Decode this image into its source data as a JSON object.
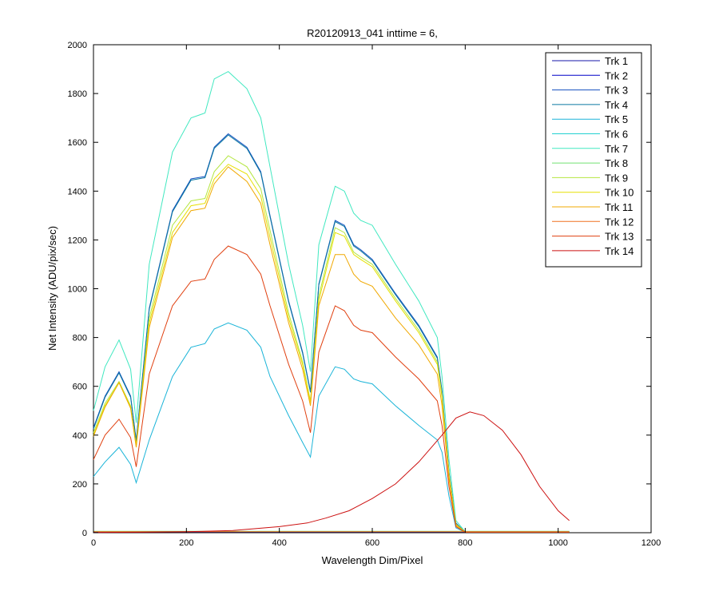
{
  "chart_data": {
    "type": "line",
    "title": "R20120913_041 inttime = 6,",
    "xlabel": "Wavelength Dim/Pixel",
    "ylabel": "Net Intensity (ADU/pix/sec)",
    "xlim": [
      0,
      1200
    ],
    "ylim": [
      0,
      2000
    ],
    "xticks": [
      "0",
      "200",
      "400",
      "600",
      "800",
      "1000",
      "1200"
    ],
    "yticks": [
      "0",
      "200",
      "400",
      "600",
      "800",
      "1000",
      "1200",
      "1400",
      "1600",
      "1800",
      "2000"
    ],
    "grid": false,
    "legend_position": "top-right",
    "series": [
      {
        "name": "Trk 1",
        "color": "#1515a8",
        "x": [
          0,
          1024
        ],
        "y": [
          3,
          3
        ]
      },
      {
        "name": "Trk 2",
        "color": "#0000c8",
        "x": [
          0,
          1024
        ],
        "y": [
          4,
          4
        ]
      },
      {
        "name": "Trk 3",
        "color": "#1450c0",
        "x": [
          0,
          25,
          55,
          80,
          92,
          120,
          170,
          210,
          240,
          260,
          290,
          330,
          360,
          380,
          420,
          450,
          467,
          485,
          520,
          540,
          560,
          575,
          600,
          650,
          700,
          740,
          750,
          765,
          780,
          800,
          1024
        ],
        "y": [
          430,
          560,
          660,
          560,
          380,
          920,
          1320,
          1450,
          1460,
          1580,
          1635,
          1580,
          1480,
          1300,
          950,
          740,
          580,
          1020,
          1280,
          1260,
          1180,
          1160,
          1120,
          980,
          850,
          720,
          580,
          250,
          40,
          3,
          3
        ]
      },
      {
        "name": "Trk 4",
        "color": "#0a78a0",
        "x": [
          0,
          25,
          55,
          80,
          92,
          120,
          170,
          210,
          240,
          260,
          290,
          330,
          360,
          380,
          420,
          450,
          467,
          485,
          520,
          540,
          560,
          575,
          600,
          650,
          700,
          740,
          750,
          765,
          780,
          800,
          1024
        ],
        "y": [
          425,
          555,
          655,
          555,
          375,
          915,
          1315,
          1445,
          1455,
          1575,
          1630,
          1575,
          1475,
          1295,
          945,
          735,
          575,
          1015,
          1275,
          1255,
          1175,
          1155,
          1115,
          975,
          845,
          715,
          575,
          245,
          38,
          3,
          3
        ]
      },
      {
        "name": "Trk 5",
        "color": "#1ab4d8",
        "x": [
          0,
          25,
          55,
          80,
          92,
          120,
          170,
          210,
          240,
          260,
          290,
          330,
          360,
          380,
          420,
          450,
          467,
          485,
          520,
          540,
          560,
          575,
          600,
          650,
          700,
          740,
          750,
          765,
          780,
          800,
          1024
        ],
        "y": [
          230,
          290,
          350,
          280,
          205,
          380,
          640,
          760,
          775,
          835,
          860,
          830,
          760,
          640,
          480,
          370,
          310,
          560,
          680,
          670,
          630,
          620,
          610,
          520,
          440,
          380,
          330,
          150,
          20,
          2,
          2
        ]
      },
      {
        "name": "Trk 6",
        "color": "#22d0d0",
        "x": [
          0,
          1024
        ],
        "y": [
          5,
          5
        ]
      },
      {
        "name": "Trk 7",
        "color": "#40e8c0",
        "x": [
          0,
          25,
          55,
          80,
          92,
          120,
          170,
          210,
          240,
          260,
          290,
          330,
          360,
          380,
          420,
          450,
          467,
          485,
          520,
          540,
          560,
          575,
          600,
          650,
          700,
          740,
          750,
          765,
          780,
          800,
          1024
        ],
        "y": [
          500,
          680,
          790,
          670,
          450,
          1100,
          1560,
          1700,
          1720,
          1860,
          1890,
          1820,
          1700,
          1500,
          1100,
          850,
          660,
          1180,
          1420,
          1400,
          1310,
          1280,
          1260,
          1100,
          950,
          800,
          640,
          300,
          50,
          4,
          4
        ]
      },
      {
        "name": "Trk 8",
        "color": "#70e070",
        "x": [
          0,
          1024
        ],
        "y": [
          6,
          6
        ]
      },
      {
        "name": "Trk 9",
        "color": "#b4e640",
        "x": [
          0,
          25,
          55,
          80,
          92,
          120,
          170,
          210,
          240,
          260,
          290,
          330,
          360,
          380,
          420,
          450,
          467,
          485,
          520,
          540,
          560,
          575,
          600,
          650,
          700,
          740,
          750,
          765,
          780,
          800,
          1024
        ],
        "y": [
          410,
          530,
          620,
          520,
          360,
          880,
          1260,
          1360,
          1370,
          1480,
          1545,
          1500,
          1410,
          1240,
          900,
          700,
          540,
          970,
          1250,
          1230,
          1150,
          1130,
          1100,
          960,
          830,
          700,
          560,
          240,
          35,
          3,
          3
        ]
      },
      {
        "name": "Trk 10",
        "color": "#e6e000",
        "x": [
          0,
          25,
          55,
          80,
          92,
          120,
          170,
          210,
          240,
          260,
          290,
          330,
          360,
          380,
          420,
          450,
          467,
          485,
          520,
          540,
          560,
          575,
          600,
          650,
          700,
          740,
          750,
          765,
          780,
          800,
          1024
        ],
        "y": [
          400,
          520,
          615,
          515,
          355,
          860,
          1230,
          1340,
          1350,
          1450,
          1510,
          1470,
          1380,
          1210,
          880,
          690,
          535,
          950,
          1230,
          1215,
          1140,
          1120,
          1090,
          950,
          820,
          690,
          555,
          235,
          33,
          3,
          3
        ]
      },
      {
        "name": "Trk 11",
        "color": "#f0a800",
        "x": [
          0,
          25,
          55,
          80,
          92,
          120,
          170,
          210,
          240,
          260,
          290,
          330,
          360,
          380,
          420,
          450,
          467,
          485,
          520,
          540,
          560,
          575,
          600,
          650,
          700,
          740,
          750,
          765,
          780,
          800,
          1024
        ],
        "y": [
          395,
          515,
          615,
          510,
          350,
          840,
          1210,
          1320,
          1330,
          1430,
          1500,
          1440,
          1350,
          1180,
          860,
          670,
          520,
          930,
          1140,
          1140,
          1060,
          1030,
          1010,
          880,
          770,
          650,
          520,
          220,
          30,
          3,
          3
        ]
      },
      {
        "name": "Trk 12",
        "color": "#f07020",
        "x": [
          0,
          1024
        ],
        "y": [
          4,
          4
        ]
      },
      {
        "name": "Trk 13",
        "color": "#e04010",
        "x": [
          0,
          25,
          55,
          80,
          92,
          120,
          170,
          210,
          240,
          260,
          290,
          330,
          360,
          380,
          420,
          450,
          467,
          485,
          520,
          540,
          560,
          575,
          600,
          650,
          700,
          740,
          750,
          765,
          780,
          800,
          1024
        ],
        "y": [
          300,
          400,
          465,
          390,
          270,
          650,
          930,
          1030,
          1040,
          1120,
          1175,
          1140,
          1060,
          930,
          690,
          540,
          410,
          740,
          930,
          910,
          850,
          830,
          820,
          720,
          630,
          540,
          440,
          190,
          25,
          2,
          2
        ]
      },
      {
        "name": "Trk 14",
        "color": "#cc1010",
        "x": [
          0,
          100,
          200,
          300,
          400,
          460,
          500,
          550,
          600,
          650,
          700,
          750,
          780,
          810,
          840,
          880,
          920,
          960,
          1000,
          1024
        ],
        "y": [
          1,
          2,
          4,
          9,
          25,
          40,
          60,
          90,
          140,
          200,
          290,
          400,
          470,
          495,
          480,
          420,
          320,
          190,
          90,
          50
        ]
      }
    ]
  }
}
